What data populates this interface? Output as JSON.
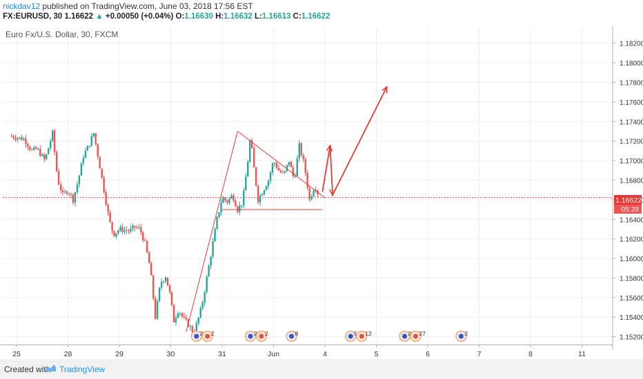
{
  "header": {
    "user": "nickdav12",
    "published": " published on TradingView.com, June 03, 2018 17:56 EST",
    "symbol": "FX:EURUSD, 30",
    "last": "1.16622",
    "change_arrow": "▲",
    "change": "+0.00050 (+0.04%)",
    "open_label": "O:",
    "open": "1.16630",
    "high_label": "H:",
    "high": "1.16632",
    "low_label": "L:",
    "low": "1.16613",
    "close_label": "C:",
    "close": "1.16622"
  },
  "chart_title": "Euro Fx/U.S. Dollar, 30, FXCM",
  "price_label": "1.16622",
  "countdown": "05:28",
  "footer": {
    "created_with": "Created with",
    "brand": "TradingView"
  },
  "events": [
    {
      "x_day": 3.5,
      "labels": [
        "2",
        "2"
      ]
    },
    {
      "x_day": 4.55,
      "labels": [
        "2",
        "2"
      ]
    },
    {
      "x_day": 5.35,
      "labels": [
        "8"
      ]
    },
    {
      "x_day": 6.5,
      "labels": [
        "5",
        "12"
      ]
    },
    {
      "x_day": 7.55,
      "labels": [
        "2",
        "27"
      ]
    },
    {
      "x_day": 8.65,
      "labels": [
        "2"
      ]
    }
  ],
  "colors": {
    "up": "#26a69a",
    "down": "#ef5350",
    "drawing": "#e53935",
    "price_line": "#e53935",
    "grid": "#eceff1"
  },
  "chart_data": {
    "type": "candlestick",
    "title": "Euro Fx/U.S. Dollar, 30, FXCM",
    "x_tick_labels": [
      "25",
      "28",
      "29",
      "30",
      "31",
      "Jun",
      "4",
      "5",
      "6",
      "7",
      "8",
      "11"
    ],
    "y_ticks": [
      "1.15200",
      "1.15400",
      "1.15600",
      "1.15800",
      "1.16000",
      "1.16200",
      "1.16400",
      "1.16600",
      "1.16800",
      "1.17000",
      "1.17200",
      "1.17400",
      "1.17600",
      "1.17800",
      "1.18000",
      "1.18200"
    ],
    "ylim": [
      1.1512,
      1.1836
    ],
    "grid": true,
    "current_price": 1.16622,
    "anchors": [
      [
        -0.1,
        1.1725
      ],
      [
        0.15,
        1.1722
      ],
      [
        0.3,
        1.171
      ],
      [
        0.4,
        1.1712
      ],
      [
        0.55,
        1.17
      ],
      [
        0.7,
        1.1728
      ],
      [
        0.8,
        1.168
      ],
      [
        0.9,
        1.1665
      ],
      [
        1.0,
        1.167
      ],
      [
        1.1,
        1.166
      ],
      [
        1.2,
        1.168
      ],
      [
        1.3,
        1.1705
      ],
      [
        1.4,
        1.1715
      ],
      [
        1.5,
        1.1728
      ],
      [
        1.6,
        1.17
      ],
      [
        1.7,
        1.167
      ],
      [
        1.8,
        1.164
      ],
      [
        1.85,
        1.163
      ],
      [
        1.9,
        1.1625
      ],
      [
        2.0,
        1.163
      ],
      [
        2.2,
        1.1628
      ],
      [
        2.3,
        1.1632
      ],
      [
        2.4,
        1.163
      ],
      [
        2.5,
        1.1615
      ],
      [
        2.6,
        1.159
      ],
      [
        2.7,
        1.154
      ],
      [
        2.8,
        1.1575
      ],
      [
        2.9,
        1.1582
      ],
      [
        3.0,
        1.156
      ],
      [
        3.05,
        1.1535
      ],
      [
        3.15,
        1.1548
      ],
      [
        3.25,
        1.1538
      ],
      [
        3.35,
        1.1532
      ],
      [
        3.45,
        1.1523
      ],
      [
        3.6,
        1.155
      ],
      [
        3.7,
        1.158
      ],
      [
        3.8,
        1.161
      ],
      [
        3.9,
        1.164
      ],
      [
        4.0,
        1.1662
      ],
      [
        4.1,
        1.1658
      ],
      [
        4.2,
        1.1665
      ],
      [
        4.3,
        1.165
      ],
      [
        4.4,
        1.1658
      ],
      [
        4.5,
        1.17
      ],
      [
        4.55,
        1.1725
      ],
      [
        4.6,
        1.17
      ],
      [
        4.7,
        1.166
      ],
      [
        4.8,
        1.167
      ],
      [
        4.9,
        1.168
      ],
      [
        5.0,
        1.17
      ],
      [
        5.1,
        1.169
      ],
      [
        5.2,
        1.1685
      ],
      [
        5.3,
        1.17
      ],
      [
        5.4,
        1.168
      ],
      [
        5.5,
        1.1715
      ],
      [
        5.6,
        1.1695
      ],
      [
        5.7,
        1.166
      ],
      [
        5.8,
        1.1675
      ],
      [
        5.9,
        1.1662
      ]
    ],
    "drawings": [
      {
        "type": "trend",
        "points": [
          [
            4.0,
            1.165
          ],
          [
            5.95,
            1.165
          ]
        ]
      },
      {
        "type": "trend",
        "points": [
          [
            3.3,
            1.1525
          ],
          [
            4.3,
            1.173
          ]
        ]
      },
      {
        "type": "trend",
        "points": [
          [
            4.3,
            1.173
          ],
          [
            6.0,
            1.1662
          ]
        ]
      },
      {
        "type": "arrow",
        "points": [
          [
            5.95,
            1.1668
          ],
          [
            6.1,
            1.1715
          ]
        ]
      },
      {
        "type": "arrow",
        "points": [
          [
            6.1,
            1.1715
          ],
          [
            6.15,
            1.1665
          ]
        ]
      },
      {
        "type": "arrow",
        "points": [
          [
            6.15,
            1.1665
          ],
          [
            7.2,
            1.1775
          ]
        ]
      }
    ]
  }
}
